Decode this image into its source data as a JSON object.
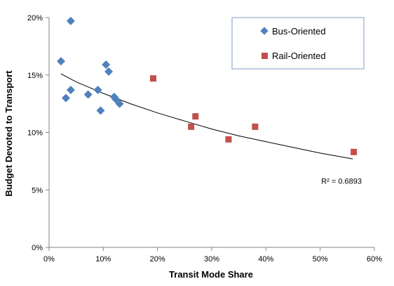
{
  "chart_data": {
    "type": "scatter",
    "xlabel": "Transit Mode Share",
    "ylabel": "Budget Devoted to Transport",
    "xlim": [
      0,
      0.6
    ],
    "ylim": [
      0,
      0.2
    ],
    "x_ticks": [
      {
        "value": 0.0,
        "label": "0%"
      },
      {
        "value": 0.1,
        "label": "10%"
      },
      {
        "value": 0.2,
        "label": "20%"
      },
      {
        "value": 0.3,
        "label": "30%"
      },
      {
        "value": 0.4,
        "label": "40%"
      },
      {
        "value": 0.5,
        "label": "50%"
      },
      {
        "value": 0.6,
        "label": "60%"
      }
    ],
    "y_ticks": [
      {
        "value": 0.0,
        "label": "0%"
      },
      {
        "value": 0.05,
        "label": "5%"
      },
      {
        "value": 0.1,
        "label": "10%"
      },
      {
        "value": 0.15,
        "label": "15%"
      },
      {
        "value": 0.2,
        "label": "20%"
      }
    ],
    "grid": false,
    "legend_position": "top-right",
    "series": [
      {
        "name": "Bus-Oriented",
        "marker": "diamond",
        "color": "#4F81BD",
        "points": [
          {
            "x": 0.04,
            "y": 0.197
          },
          {
            "x": 0.022,
            "y": 0.162
          },
          {
            "x": 0.105,
            "y": 0.159
          },
          {
            "x": 0.11,
            "y": 0.153
          },
          {
            "x": 0.04,
            "y": 0.137
          },
          {
            "x": 0.09,
            "y": 0.137
          },
          {
            "x": 0.072,
            "y": 0.133
          },
          {
            "x": 0.031,
            "y": 0.13
          },
          {
            "x": 0.12,
            "y": 0.131
          },
          {
            "x": 0.123,
            "y": 0.129
          },
          {
            "x": 0.13,
            "y": 0.125
          },
          {
            "x": 0.095,
            "y": 0.119
          }
        ]
      },
      {
        "name": "Rail-Oriented",
        "marker": "square",
        "color": "#C0504D",
        "points": [
          {
            "x": 0.192,
            "y": 0.147
          },
          {
            "x": 0.27,
            "y": 0.114
          },
          {
            "x": 0.262,
            "y": 0.105
          },
          {
            "x": 0.38,
            "y": 0.105
          },
          {
            "x": 0.331,
            "y": 0.094
          },
          {
            "x": 0.562,
            "y": 0.083
          }
        ]
      }
    ],
    "trendline": {
      "type": "power-like curve",
      "color": "#000000",
      "points": [
        {
          "x": 0.022,
          "y": 0.151
        },
        {
          "x": 0.05,
          "y": 0.144
        },
        {
          "x": 0.1,
          "y": 0.134
        },
        {
          "x": 0.15,
          "y": 0.125
        },
        {
          "x": 0.2,
          "y": 0.117
        },
        {
          "x": 0.25,
          "y": 0.11
        },
        {
          "x": 0.3,
          "y": 0.103
        },
        {
          "x": 0.35,
          "y": 0.097
        },
        {
          "x": 0.4,
          "y": 0.092
        },
        {
          "x": 0.45,
          "y": 0.087
        },
        {
          "x": 0.5,
          "y": 0.082
        },
        {
          "x": 0.56,
          "y": 0.077
        }
      ]
    },
    "annotation": {
      "text": "R² = 0.6893",
      "x": 0.502,
      "y": 0.0555
    }
  }
}
